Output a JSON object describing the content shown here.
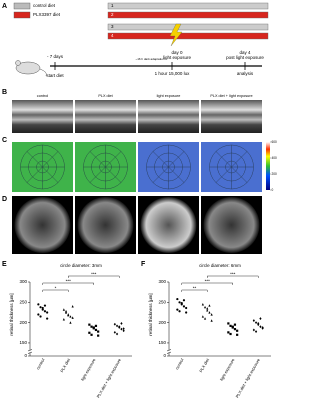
{
  "panel_a": {
    "label": "A",
    "legend": [
      "control diet",
      "PLX3397 diet"
    ],
    "row_numbers": [
      "1",
      "2",
      "3",
      "4"
    ],
    "timeline": {
      "start": "- 7 days",
      "day0": "day 0",
      "day0_caption": "light exposure",
      "day4": "day 4",
      "day4_caption": "post light exposure",
      "dark": "~16 h dark adaptation",
      "start_caption": "start diet",
      "exposure": "1 hour 15,000 lux",
      "end_caption": "analysis"
    }
  },
  "panel_b": {
    "label": "B",
    "columns": [
      "control",
      "PLX diet",
      "light exposure",
      "PLX diet + light exposure"
    ]
  },
  "panel_c": {
    "label": "C",
    "colorbar_lim": [
      0,
      600
    ],
    "colorbar_ticks": [
      600,
      400,
      200,
      0
    ]
  },
  "panel_d": {
    "label": "D"
  },
  "chart_data": [
    {
      "type": "strip",
      "panel_label": "E",
      "title": "circle diameter: 3mm",
      "y_label": "retinal thickness [µm]",
      "categories": [
        "control",
        "PLX diet",
        "light exposure",
        "PLX diet + light exposure"
      ],
      "values": [
        [
          245,
          238,
          232,
          228,
          225,
          220,
          215,
          236,
          242,
          210
        ],
        [
          232,
          225,
          220,
          215,
          212,
          208,
          228,
          218,
          200,
          240
        ],
        [
          195,
          190,
          186,
          182,
          178,
          175,
          170,
          188,
          192,
          168
        ],
        [
          196,
          192,
          188,
          184,
          180,
          176,
          172,
          190,
          198,
          185
        ]
      ],
      "ylim": [
        140,
        300
      ],
      "yticks": [
        150,
        200,
        250,
        300
      ],
      "ybreak_tick": 0,
      "significance": [
        "*",
        "***",
        "***"
      ],
      "color": "#000000"
    },
    {
      "type": "strip",
      "panel_label": "F",
      "title": "circle diameter: 6mm",
      "y_label": "retinal thickness [µm]",
      "categories": [
        "control",
        "PLX diet",
        "light exposure",
        "PLX diet + light exposure"
      ],
      "values": [
        [
          258,
          250,
          245,
          240,
          236,
          232,
          228,
          248,
          255,
          225
        ],
        [
          245,
          238,
          230,
          225,
          220,
          215,
          210,
          235,
          242,
          205
        ],
        [
          198,
          192,
          188,
          184,
          180,
          176,
          172,
          190,
          195,
          170
        ],
        [
          205,
          200,
          195,
          190,
          186,
          182,
          178,
          198,
          210,
          188
        ]
      ],
      "ylim": [
        140,
        300
      ],
      "yticks": [
        150,
        200,
        250,
        300
      ],
      "ybreak_tick": 0,
      "significance": [
        "**",
        "***",
        "***"
      ],
      "color": "#000000"
    }
  ]
}
